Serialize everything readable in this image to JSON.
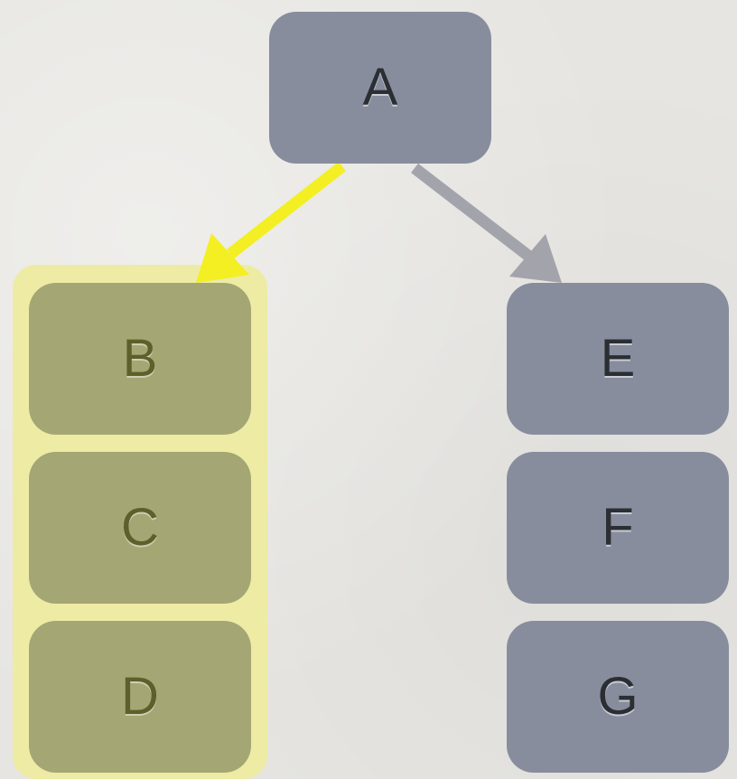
{
  "colors": {
    "background": "#e6e5e1",
    "node_gray": "#878d9d",
    "node_olive": "#a4a773",
    "highlight": "#eeeba4",
    "arrow_highlighted": "#f3ef22",
    "arrow_default": "#a3a4ab"
  },
  "nodes": {
    "a": {
      "label": "A"
    },
    "b": {
      "label": "B"
    },
    "c": {
      "label": "C"
    },
    "d": {
      "label": "D"
    },
    "e": {
      "label": "E"
    },
    "f": {
      "label": "F"
    },
    "g": {
      "label": "G"
    }
  },
  "edges": [
    {
      "from": "A",
      "to": "B",
      "highlighted": true
    },
    {
      "from": "A",
      "to": "E",
      "highlighted": false
    }
  ],
  "highlighted_group": [
    "B",
    "C",
    "D"
  ]
}
